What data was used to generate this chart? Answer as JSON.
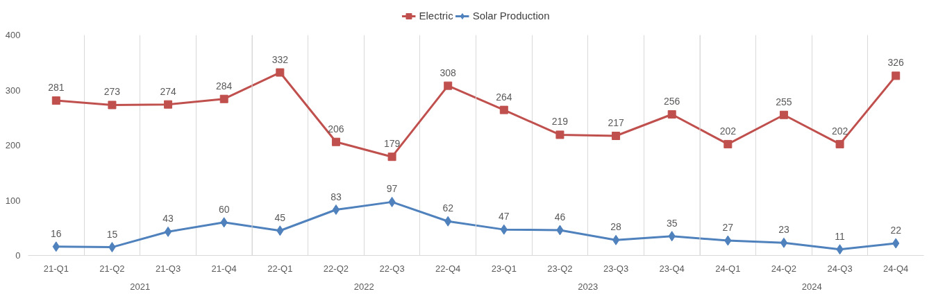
{
  "chart_data": {
    "type": "line",
    "categories": [
      "21-Q1",
      "21-Q2",
      "21-Q3",
      "21-Q4",
      "22-Q1",
      "22-Q2",
      "22-Q3",
      "22-Q4",
      "23-Q1",
      "23-Q2",
      "23-Q3",
      "23-Q4",
      "24-Q1",
      "24-Q2",
      "24-Q3",
      "24-Q4"
    ],
    "series": [
      {
        "name": "Electric",
        "color": "#c0504d",
        "marker": "square",
        "values": [
          281,
          273,
          274,
          284,
          332,
          206,
          179,
          308,
          264,
          219,
          217,
          256,
          202,
          255,
          202,
          326
        ]
      },
      {
        "name": "Solar Production",
        "color": "#4f81bd",
        "marker": "diamond",
        "values": [
          16,
          15,
          43,
          60,
          45,
          83,
          97,
          62,
          47,
          46,
          28,
          35,
          27,
          23,
          11,
          22
        ]
      }
    ],
    "annotations": [
      "2021",
      "2022",
      "2023",
      "2024"
    ],
    "ylim": [
      0,
      400
    ],
    "yticks": [
      0,
      100,
      200,
      300,
      400
    ],
    "grid": "x",
    "legend": "top",
    "data_labels": true,
    "line_style": "solid"
  }
}
